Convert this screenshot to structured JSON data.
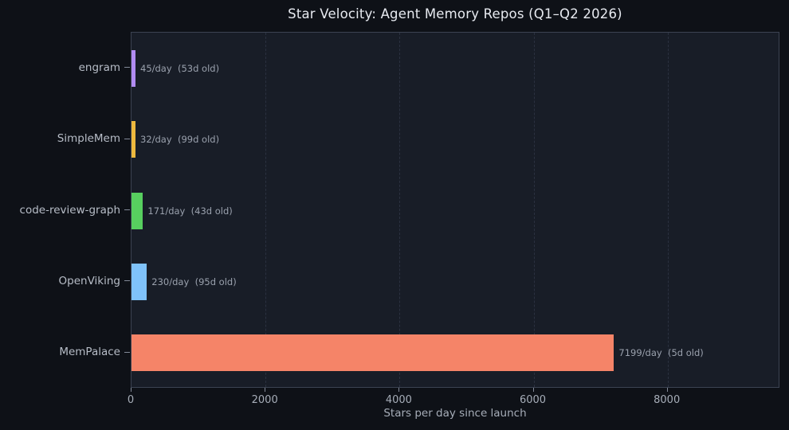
{
  "chart_data": {
    "type": "bar",
    "orientation": "horizontal",
    "title": "Star Velocity: Agent Memory Repos (Q1–Q2 2026)",
    "xlabel": "Stars per day since launch",
    "categories": [
      "engram",
      "SimpleMem",
      "code-review-graph",
      "OpenViking",
      "MemPalace"
    ],
    "values": [
      45,
      32,
      171,
      230,
      7199
    ],
    "age_days": [
      53,
      99,
      43,
      95,
      5
    ],
    "annotations": [
      "45/day  (53d old)",
      "32/day  (99d old)",
      "171/day  (43d old)",
      "230/day  (95d old)",
      "7199/day  (5d old)"
    ],
    "bar_colors": [
      "#b18cf2",
      "#eeb93e",
      "#57cf5f",
      "#7fc2fa",
      "#f58468"
    ],
    "xlim": [
      0,
      9680
    ],
    "xticks": [
      0,
      2000,
      4000,
      6000,
      8000
    ],
    "xtick_labels": [
      "0",
      "2000",
      "4000",
      "6000",
      "8000"
    ],
    "grid": "dashed-vertical",
    "legend": "none"
  },
  "colors": {
    "figure_bg": "#0e1117",
    "axes_bg": "#181d27",
    "spine": "#3c4352",
    "grid": "#2b3140",
    "title": "#e7eaf0",
    "ytick_label": "#b7bdc7",
    "xtick_label": "#a6adb8",
    "axis_label": "#a6adb8",
    "annotation": "#9aa1ad",
    "tick_mark": "#828997"
  }
}
